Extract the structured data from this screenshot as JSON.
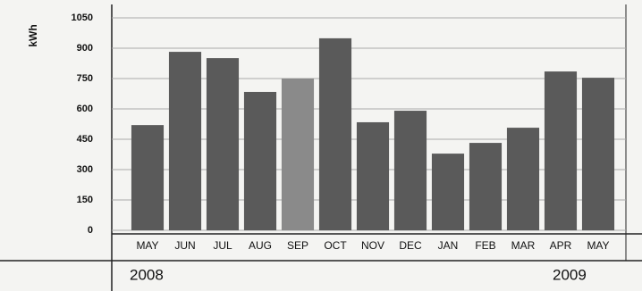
{
  "chart_data": {
    "type": "bar",
    "ylabel": "kWh",
    "categories": [
      "MAY",
      "JUN",
      "JUL",
      "AUG",
      "SEP",
      "OCT",
      "NOV",
      "DEC",
      "JAN",
      "FEB",
      "MAR",
      "APR",
      "MAY"
    ],
    "values": [
      520,
      882,
      851,
      684,
      750,
      949,
      534,
      591,
      379,
      432,
      507,
      785,
      754
    ],
    "color": "#5a5a5a",
    "ylim": [
      0,
      1050
    ],
    "yticks": [
      0,
      150,
      300,
      450,
      600,
      750,
      900,
      1050
    ],
    "grid": true,
    "annotations": [
      "2008",
      "2009"
    ]
  }
}
